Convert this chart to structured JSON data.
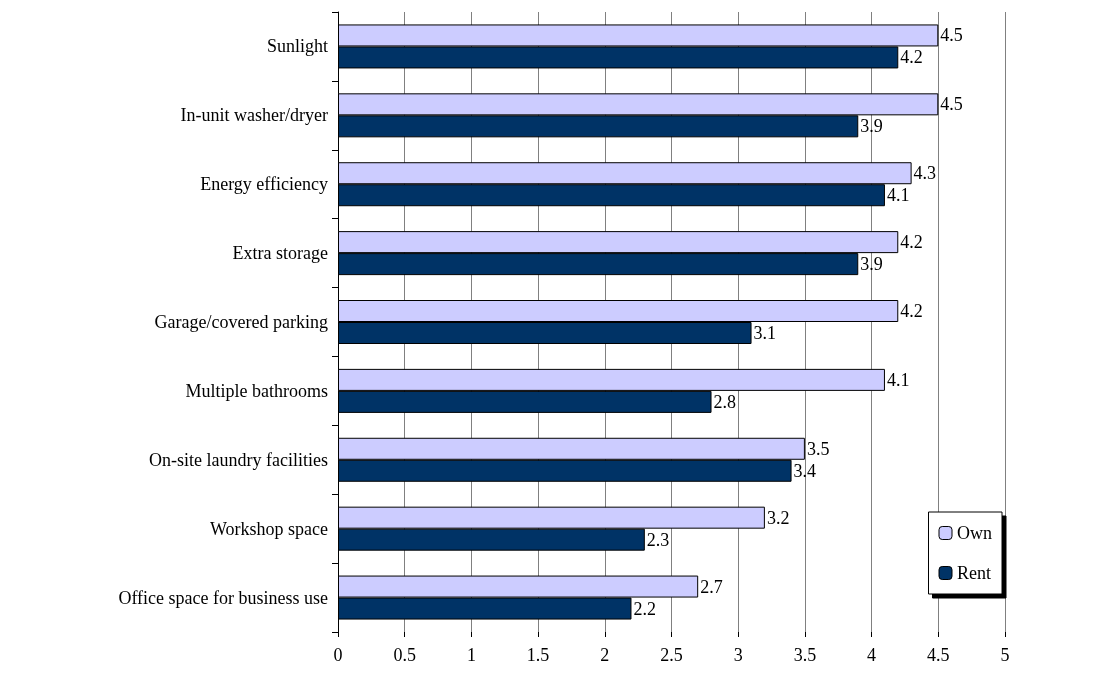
{
  "chart_data": {
    "type": "bar",
    "orientation": "horizontal",
    "categories": [
      "Sunlight",
      "In-unit washer/dryer",
      "Energy efficiency",
      "Extra storage",
      "Garage/covered parking",
      "Multiple bathrooms",
      "On-site laundry facilities",
      "Workshop space",
      "Office space for business use"
    ],
    "series": [
      {
        "name": "Own",
        "color": "#ccccff",
        "values": [
          4.5,
          4.5,
          4.3,
          4.2,
          4.2,
          4.1,
          3.5,
          3.2,
          2.7
        ]
      },
      {
        "name": "Rent",
        "color": "#003366",
        "values": [
          4.2,
          3.9,
          4.1,
          3.9,
          3.1,
          2.8,
          3.4,
          2.3,
          2.2
        ]
      }
    ],
    "xlim": [
      0,
      5
    ],
    "xticks": [
      0,
      0.5,
      1,
      1.5,
      2,
      2.5,
      3,
      3.5,
      4,
      4.5,
      5
    ],
    "grid": "x",
    "legend": "bottom right",
    "data_labels": true
  }
}
